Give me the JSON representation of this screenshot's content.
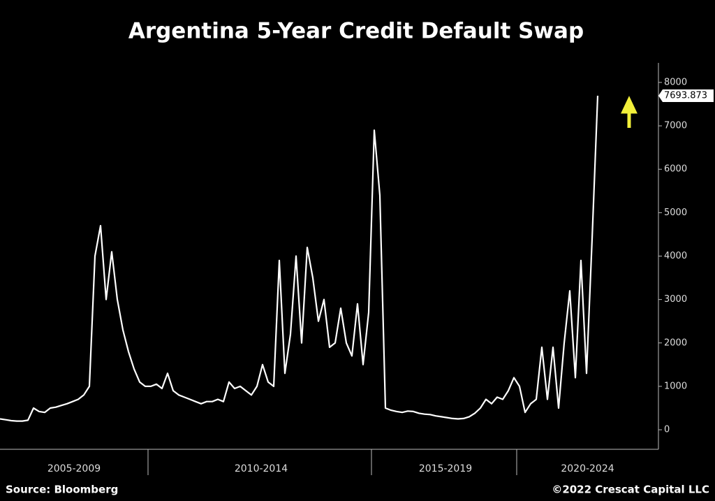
{
  "chart_data": {
    "type": "line",
    "title": "Argentina 5-Year Credit Default Swap",
    "color": "#ffffff",
    "periods": [
      {
        "label": "2005-2009",
        "values": [
          250,
          230,
          210,
          200,
          200,
          220,
          500,
          420,
          400,
          500,
          520,
          560,
          600,
          650,
          700,
          800,
          1000,
          4000,
          4700,
          3000,
          4100,
          3000,
          2300,
          1800,
          1400,
          1100,
          1000
        ]
      },
      {
        "label": "2010-2014",
        "values": [
          1000,
          1050,
          950,
          1300,
          900,
          800,
          750,
          700,
          650,
          600,
          650,
          650,
          700,
          650,
          1100,
          950,
          1000,
          900,
          800,
          1000,
          1500,
          1100,
          1000,
          3900,
          1300,
          2200,
          4000,
          2000,
          4200,
          3500,
          2500,
          3000,
          1900,
          2000,
          2800,
          2000,
          1700,
          2900,
          1500,
          2700
        ]
      },
      {
        "label": "2015-2019",
        "values": [
          6900,
          5400,
          500,
          450,
          420,
          400,
          430,
          420,
          380,
          360,
          350,
          320,
          300,
          280,
          260,
          250,
          260,
          300,
          380,
          500,
          700,
          600,
          750,
          700,
          900,
          1200
        ]
      },
      {
        "label": "2020-2024",
        "values": [
          1000,
          400,
          600,
          700,
          1900,
          700,
          1900,
          500,
          2000,
          3200,
          1200,
          3900,
          1300,
          4400,
          7693.873
        ]
      }
    ],
    "ylim": [
      -450,
      8450
    ],
    "yticks": [
      0,
      1000,
      2000,
      3000,
      4000,
      5000,
      6000,
      7000,
      8000
    ],
    "source": "Source: Bloomberg",
    "credit": "©2022 Crescat Capital LLC"
  }
}
